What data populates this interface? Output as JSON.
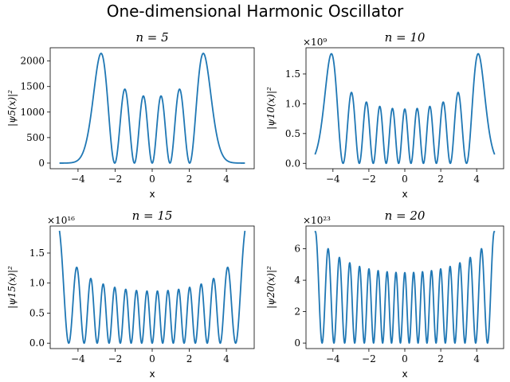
{
  "figure": {
    "title": "One-dimensional Harmonic Oscillator"
  },
  "style": {
    "line_color": "#1f77b4"
  },
  "chart_data": [
    {
      "type": "line",
      "n": 5,
      "title": "n = 5",
      "xlabel": "x",
      "ylabel": "|ψ5(x)|²",
      "offset_text": "",
      "x_range": [
        -5,
        5
      ],
      "xlim": [
        -5.5,
        5.5
      ],
      "ylim": [
        -110,
        2260
      ],
      "x_ticks": [
        -4,
        -2,
        0,
        2,
        4
      ],
      "x_tick_labels": [
        "−4",
        "−2",
        "0",
        "2",
        "4"
      ],
      "y_ticks": [
        0,
        500,
        1000,
        1500,
        2000
      ],
      "y_tick_labels": [
        "0",
        "500",
        "1000",
        "1500",
        "2000"
      ],
      "peak_value": 2150
    },
    {
      "type": "line",
      "n": 10,
      "title": "n = 10",
      "xlabel": "x",
      "ylabel": "|ψ10(x)|²",
      "offset_text": "×10⁹",
      "x_range": [
        -5,
        5
      ],
      "xlim": [
        -5.5,
        5.5
      ],
      "ylim": [
        -0.09,
        1.94
      ],
      "x_ticks": [
        -4,
        -2,
        0,
        2,
        4
      ],
      "x_tick_labels": [
        "−4",
        "−2",
        "0",
        "2",
        "4"
      ],
      "y_ticks": [
        0,
        0.5,
        1.0,
        1.5
      ],
      "y_tick_labels": [
        "0.0",
        "0.5",
        "1.0",
        "1.5"
      ],
      "peak_value": 1.84
    },
    {
      "type": "line",
      "n": 15,
      "title": "n = 15",
      "xlabel": "x",
      "ylabel": "|ψ15(x)|²",
      "offset_text": "×10¹⁶",
      "x_range": [
        -5,
        5
      ],
      "xlim": [
        -5.5,
        5.5
      ],
      "ylim": [
        -0.09,
        1.95
      ],
      "x_ticks": [
        -4,
        -2,
        0,
        2,
        4
      ],
      "x_tick_labels": [
        "−4",
        "−2",
        "0",
        "2",
        "4"
      ],
      "y_ticks": [
        0,
        0.5,
        1.0,
        1.5
      ],
      "y_tick_labels": [
        "0.0",
        "0.5",
        "1.0",
        "1.5"
      ],
      "peak_value": 1.87
    },
    {
      "type": "line",
      "n": 20,
      "title": "n = 20",
      "xlabel": "x",
      "ylabel": "|ψ20(x)|²",
      "offset_text": "×10²³",
      "x_range": [
        -5,
        5
      ],
      "xlim": [
        -5.5,
        5.5
      ],
      "ylim": [
        -0.35,
        7.45
      ],
      "x_ticks": [
        -4,
        -2,
        0,
        2,
        4
      ],
      "x_tick_labels": [
        "−4",
        "−2",
        "0",
        "2",
        "4"
      ],
      "y_ticks": [
        0,
        2,
        4,
        6
      ],
      "y_tick_labels": [
        "0",
        "2",
        "4",
        "6"
      ],
      "peak_value": 7.1
    }
  ]
}
